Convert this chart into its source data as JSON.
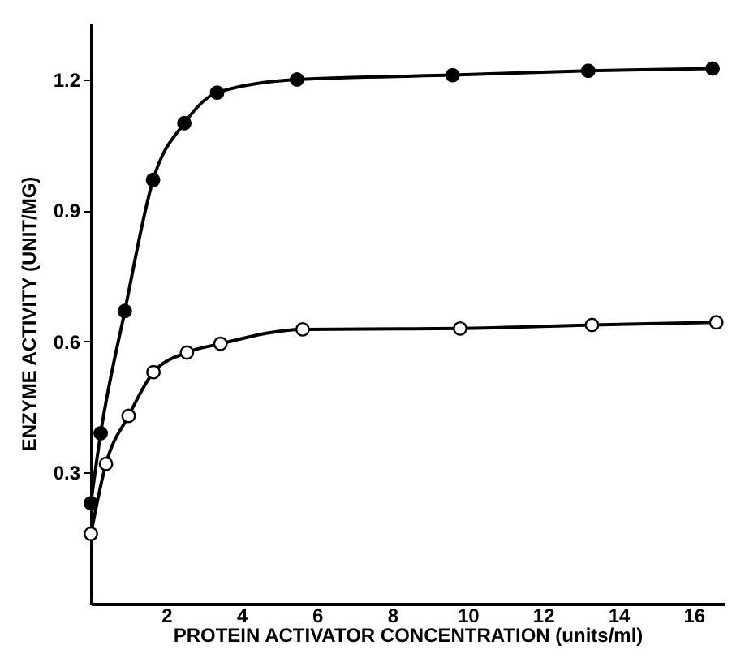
{
  "chart_data": {
    "type": "line",
    "xlabel": "PROTEIN ACTIVATOR CONCENTRATION (units/ml)",
    "ylabel": "ENZYME ACTIVITY (UNIT/MG)",
    "xlim": [
      0,
      16.8
    ],
    "xticks": [
      2,
      4,
      6,
      8,
      10,
      12,
      14,
      16
    ],
    "ylim": [
      0,
      1.33
    ],
    "yticks": [
      0.3,
      0.6,
      0.9,
      1.2
    ],
    "grid": false,
    "marker": "circle",
    "line_style": "solid",
    "series": [
      {
        "color": "#000000",
        "x": [
          0,
          0.26,
          0.9,
          1.65,
          2.48,
          3.35,
          5.47,
          9.6,
          13.2,
          16.5
        ],
        "values": [
          0.23,
          0.39,
          0.67,
          0.97,
          1.1,
          1.17,
          1.2,
          1.21,
          1.22,
          1.225
        ]
      },
      {
        "color": "#000000",
        "x": [
          0,
          0.4,
          1.0,
          1.66,
          2.55,
          3.44,
          5.62,
          9.8,
          13.3,
          16.6
        ],
        "values": [
          0.16,
          0.32,
          0.43,
          0.53,
          0.575,
          0.595,
          0.628,
          0.63,
          0.638,
          0.644
        ]
      }
    ]
  }
}
